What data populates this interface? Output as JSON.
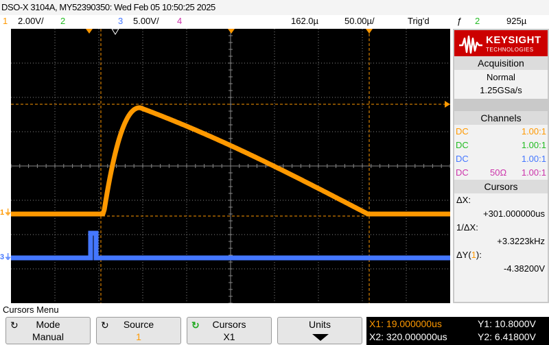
{
  "title": "DSO-X 3104A, MY52390350: Wed Feb 05 10:50:25 2025",
  "status": {
    "ch1_num": "1",
    "ch1_scale": "2.00V/",
    "ch2_num": "2",
    "ch3_num": "3",
    "ch3_scale": "5.00V/",
    "ch4_num": "4",
    "timebase_pos": "162.0µ",
    "timebase_scale": "50.00µ/",
    "trig_state": "Trig'd",
    "trig_icon": "rising-edge-icon",
    "trig_channel": "2",
    "trig_level": "925µ"
  },
  "colors": {
    "ch1": "#ff9900",
    "ch2": "#22bb22",
    "ch3": "#4477ff",
    "ch4": "#cc33aa",
    "grid": "#888888",
    "screen_bg": "#000000",
    "logo_bg": "#cc0000"
  },
  "screen": {
    "ch1_marker": "1",
    "ch3_marker": "3",
    "ch1_dc_level_div": 1.6,
    "ch1_peak_level_div": 3.0,
    "ch1_cursor_y_div": 2.2
  },
  "panel": {
    "logo_name": "KEYSIGHT",
    "logo_sub": "TECHNOLOGIES",
    "acquisition": {
      "header": "Acquisition",
      "mode": "Normal",
      "rate": "1.25GSa/s"
    },
    "channels": {
      "header": "Channels",
      "rows": [
        {
          "coupling": "DC",
          "imp": "",
          "probe": "1.00:1"
        },
        {
          "coupling": "DC",
          "imp": "",
          "probe": "1.00:1"
        },
        {
          "coupling": "DC",
          "imp": "",
          "probe": "1.00:1"
        },
        {
          "coupling": "DC",
          "imp": "50Ω",
          "probe": "1.00:1"
        }
      ]
    },
    "cursors": {
      "header": "Cursors",
      "dx_label": "ΔX:",
      "dx_value": "+301.000000us",
      "inv_dx_label": "1/ΔX:",
      "inv_dx_value": "+3.3223kHz",
      "dy_label_prefix": "ΔY(",
      "dy_label_ch": "1",
      "dy_label_suffix": "):",
      "dy_value": "-4.38200V"
    }
  },
  "menu": {
    "title": "Cursors Menu",
    "softkeys": [
      {
        "label": "Mode",
        "value": "Manual"
      },
      {
        "label": "Source",
        "value": "1"
      },
      {
        "label": "Cursors",
        "value": "X1"
      },
      {
        "label": "Units",
        "value": ""
      }
    ]
  },
  "readout": {
    "x1": "X1: 19.000000us",
    "x2": "X2: 320.000000us",
    "y1": "Y1: 10.8000V",
    "y2": "Y2: 6.41800V"
  }
}
